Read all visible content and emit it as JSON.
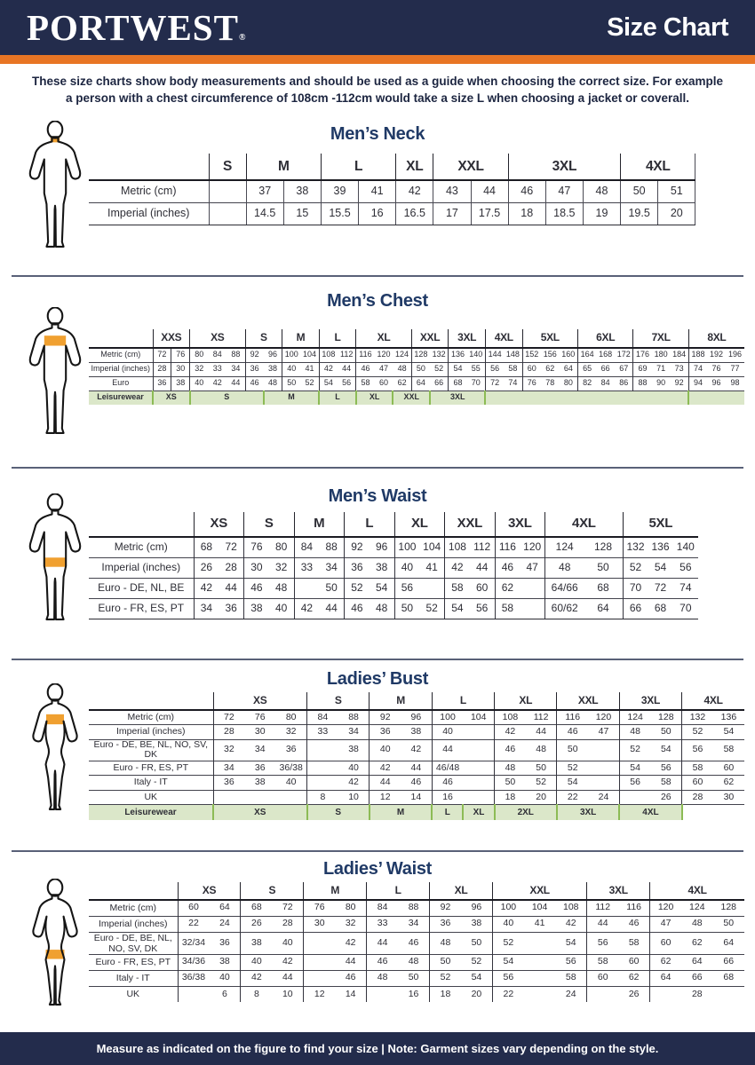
{
  "header": {
    "logo": "PORTWEST",
    "registered": "®",
    "title": "Size Chart"
  },
  "intro": {
    "line1": "These size charts show body measurements and should be used as a guide when choosing the correct size. For example",
    "line2": "a person with a chest circumference of 108cm -112cm would take a size L when choosing a jacket or coverall."
  },
  "colors": {
    "navy": "#232c4c",
    "orange": "#e87524",
    "size_red": "#a51d22",
    "title_navy": "#203a66",
    "leisure_green": "#65a033",
    "leisure_green_bg": "#dbe7c9",
    "figure_highlight": "#f0a030"
  },
  "sections": [
    {
      "id": "mens-neck",
      "title": "Men’s Neck",
      "figure": {
        "type": "male",
        "band": "neck"
      },
      "groups": [
        {
          "label": "S",
          "span": 1
        },
        {
          "label": "M",
          "span": 2
        },
        {
          "label": "L",
          "span": 2
        },
        {
          "label": "XL",
          "span": 1
        },
        {
          "label": "XXL",
          "span": 2
        },
        {
          "label": "3XL",
          "span": 3
        },
        {
          "label": "4XL",
          "span": 2
        }
      ],
      "rows": [
        {
          "label": "Metric (cm)",
          "cells": [
            "",
            "37",
            "38",
            "39",
            "41",
            "42",
            "43",
            "44",
            "46",
            "47",
            "48",
            "50",
            "51"
          ]
        },
        {
          "label": "Imperial (inches)",
          "cells": [
            "",
            "14.5",
            "15",
            "15.5",
            "16",
            "16.5",
            "17",
            "17.5",
            "18",
            "18.5",
            "19",
            "19.5",
            "20"
          ]
        }
      ]
    },
    {
      "id": "mens-chest",
      "title": "Men’s Chest",
      "figure": {
        "type": "male",
        "band": "chest"
      },
      "groups": [
        {
          "label": "XXS",
          "span": 2
        },
        {
          "label": "XS",
          "span": 3
        },
        {
          "label": "S",
          "span": 2
        },
        {
          "label": "M",
          "span": 2
        },
        {
          "label": "L",
          "span": 2
        },
        {
          "label": "XL",
          "span": 3
        },
        {
          "label": "XXL",
          "span": 2
        },
        {
          "label": "3XL",
          "span": 2
        },
        {
          "label": "4XL",
          "span": 2
        },
        {
          "label": "5XL",
          "span": 3
        },
        {
          "label": "6XL",
          "span": 3
        },
        {
          "label": "7XL",
          "span": 3
        },
        {
          "label": "8XL",
          "span": 3
        }
      ],
      "rows": [
        {
          "label": "Metric (cm)",
          "cells": [
            "72",
            "76",
            "80",
            "84",
            "88",
            "92",
            "96",
            "100",
            "104",
            "108",
            "112",
            "116",
            "120",
            "124",
            "128",
            "132",
            "136",
            "140",
            "144",
            "148",
            "152",
            "156",
            "160",
            "164",
            "168",
            "172",
            "176",
            "180",
            "184",
            "188",
            "192",
            "196"
          ]
        },
        {
          "label": "Imperial (inches)",
          "cells": [
            "28",
            "30",
            "32",
            "33",
            "34",
            "36",
            "38",
            "40",
            "41",
            "42",
            "44",
            "46",
            "47",
            "48",
            "50",
            "52",
            "54",
            "55",
            "56",
            "58",
            "60",
            "62",
            "64",
            "65",
            "66",
            "67",
            "69",
            "71",
            "73",
            "74",
            "76",
            "77"
          ]
        },
        {
          "label": "Euro",
          "cells": [
            "36",
            "38",
            "40",
            "42",
            "44",
            "46",
            "48",
            "50",
            "52",
            "54",
            "56",
            "58",
            "60",
            "62",
            "64",
            "66",
            "68",
            "70",
            "72",
            "74",
            "76",
            "78",
            "80",
            "82",
            "84",
            "86",
            "88",
            "90",
            "92",
            "94",
            "96",
            "98"
          ]
        }
      ],
      "leisure": {
        "label": "Leisurewear",
        "segments": [
          {
            "label": "XS",
            "span": 2
          },
          {
            "label": "S",
            "span": 4
          },
          {
            "label": "M",
            "span": 3
          },
          {
            "label": "L",
            "span": 2
          },
          {
            "label": "XL",
            "span": 2
          },
          {
            "label": "XXL",
            "span": 2
          },
          {
            "label": "3XL",
            "span": 3
          },
          {
            "label": "",
            "span": 11
          },
          {
            "label": "",
            "span": 3
          }
        ]
      }
    },
    {
      "id": "mens-waist",
      "title": "Men’s Waist",
      "figure": {
        "type": "male",
        "band": "waist"
      },
      "groups": [
        {
          "label": "XS",
          "span": 2
        },
        {
          "label": "S",
          "span": 2
        },
        {
          "label": "M",
          "span": 2
        },
        {
          "label": "L",
          "span": 2
        },
        {
          "label": "XL",
          "span": 2
        },
        {
          "label": "XXL",
          "span": 2
        },
        {
          "label": "3XL",
          "span": 2
        },
        {
          "label": "4XL",
          "span": 2
        },
        {
          "label": "5XL",
          "span": 3
        }
      ],
      "rows": [
        {
          "label": "Metric (cm)",
          "cells": [
            "68",
            "72",
            "76",
            "80",
            "84",
            "88",
            "92",
            "96",
            "100",
            "104",
            "108",
            "112",
            "116",
            "120",
            "124",
            "128",
            "132",
            "136",
            "140"
          ]
        },
        {
          "label": "Imperial (inches)",
          "cells": [
            "26",
            "28",
            "30",
            "32",
            "33",
            "34",
            "36",
            "38",
            "40",
            "41",
            "42",
            "44",
            "46",
            "47",
            "48",
            "50",
            "52",
            "54",
            "56"
          ]
        },
        {
          "label": "Euro - DE, NL, BE",
          "cells": [
            "42",
            "44",
            "46",
            "48",
            "",
            "50",
            "52",
            "54",
            "56",
            "",
            "58",
            "60",
            "62",
            "",
            "64/66",
            "68",
            "70",
            "72",
            "74"
          ]
        },
        {
          "label": "Euro - FR, ES, PT",
          "cells": [
            "34",
            "36",
            "38",
            "40",
            "42",
            "44",
            "46",
            "48",
            "50",
            "52",
            "54",
            "56",
            "58",
            "",
            "60/62",
            "64",
            "66",
            "68",
            "70"
          ]
        }
      ]
    },
    {
      "id": "ladies-bust",
      "title": "Ladies’ Bust",
      "figure": {
        "type": "female",
        "band": "bust"
      },
      "groups": [
        {
          "label": "XS",
          "span": 3
        },
        {
          "label": "S",
          "span": 2
        },
        {
          "label": "M",
          "span": 2
        },
        {
          "label": "L",
          "span": 2
        },
        {
          "label": "XL",
          "span": 2
        },
        {
          "label": "XXL",
          "span": 2
        },
        {
          "label": "3XL",
          "span": 2
        },
        {
          "label": "4XL",
          "span": 2
        }
      ],
      "rows": [
        {
          "label": "Metric (cm)",
          "cells": [
            "72",
            "76",
            "80",
            "84",
            "88",
            "92",
            "96",
            "100",
            "104",
            "108",
            "112",
            "116",
            "120",
            "124",
            "128",
            "132",
            "136"
          ]
        },
        {
          "label": "Imperial (inches)",
          "cells": [
            "28",
            "30",
            "32",
            "33",
            "34",
            "36",
            "38",
            "40",
            "",
            "42",
            "44",
            "46",
            "47",
            "48",
            "50",
            "52",
            "54"
          ]
        },
        {
          "label": "Euro -  DE, BE, NL, NO, SV, DK",
          "cells": [
            "32",
            "34",
            "36",
            "",
            "38",
            "40",
            "42",
            "44",
            "",
            "46",
            "48",
            "50",
            "",
            "52",
            "54",
            "56",
            "58"
          ]
        },
        {
          "label": "Euro - FR, ES, PT",
          "cells": [
            "34",
            "36",
            "36/38",
            "",
            "40",
            "42",
            "44",
            "46/48",
            "",
            "48",
            "50",
            "52",
            "",
            "54",
            "56",
            "58",
            "60"
          ]
        },
        {
          "label": "Italy - IT",
          "cells": [
            "36",
            "38",
            "40",
            "",
            "42",
            "44",
            "46",
            "46",
            "",
            "50",
            "52",
            "54",
            "",
            "56",
            "58",
            "60",
            "62"
          ]
        },
        {
          "label": "UK",
          "cells": [
            "",
            "",
            "",
            "8",
            "10",
            "12",
            "14",
            "16",
            "",
            "18",
            "20",
            "22",
            "24",
            "",
            "26",
            "28",
            "30"
          ]
        }
      ],
      "leisure": {
        "label": "Leisurewear",
        "segments": [
          {
            "label": "XS",
            "span": 3
          },
          {
            "label": "S",
            "span": 2
          },
          {
            "label": "M",
            "span": 2
          },
          {
            "label": "L",
            "span": 1
          },
          {
            "label": "XL",
            "span": 1
          },
          {
            "label": "2XL",
            "span": 2
          },
          {
            "label": "3XL",
            "span": 2
          },
          {
            "label": "4XL",
            "span": 2
          },
          {
            "label": "",
            "span": 2,
            "green": false
          }
        ]
      }
    },
    {
      "id": "ladies-waist",
      "title": "Ladies’ Waist",
      "figure": {
        "type": "female",
        "band": "waist"
      },
      "groups": [
        {
          "label": "XS",
          "span": 2
        },
        {
          "label": "S",
          "span": 2
        },
        {
          "label": "M",
          "span": 2
        },
        {
          "label": "L",
          "span": 2
        },
        {
          "label": "XL",
          "span": 2
        },
        {
          "label": "XXL",
          "span": 3
        },
        {
          "label": "3XL",
          "span": 2
        },
        {
          "label": "4XL",
          "span": 3
        }
      ],
      "rows": [
        {
          "label": "Metric (cm)",
          "cells": [
            "60",
            "64",
            "68",
            "72",
            "76",
            "80",
            "84",
            "88",
            "92",
            "96",
            "100",
            "104",
            "108",
            "112",
            "116",
            "120",
            "124",
            "128"
          ]
        },
        {
          "label": "Imperial (inches)",
          "cells": [
            "22",
            "24",
            "26",
            "28",
            "30",
            "32",
            "33",
            "34",
            "36",
            "38",
            "40",
            "41",
            "42",
            "44",
            "46",
            "47",
            "48",
            "50"
          ]
        },
        {
          "label": "Euro - DE, BE, NL,\nNO, SV, DK",
          "cells": [
            "32/34",
            "36",
            "38",
            "40",
            "",
            "42",
            "44",
            "46",
            "48",
            "50",
            "52",
            "",
            "54",
            "56",
            "58",
            "60",
            "62",
            "64"
          ]
        },
        {
          "label": "Euro - FR, ES, PT",
          "cells": [
            "34/36",
            "38",
            "40",
            "42",
            "",
            "44",
            "46",
            "48",
            "50",
            "52",
            "54",
            "",
            "56",
            "58",
            "60",
            "62",
            "64",
            "66"
          ]
        },
        {
          "label": "Italy - IT",
          "cells": [
            "36/38",
            "40",
            "42",
            "44",
            "",
            "46",
            "48",
            "50",
            "52",
            "54",
            "56",
            "",
            "58",
            "60",
            "62",
            "64",
            "66",
            "68"
          ]
        },
        {
          "label": "UK",
          "cells": [
            "",
            "6",
            "8",
            "10",
            "12",
            "14",
            "",
            "16",
            "18",
            "20",
            "22",
            "",
            "24",
            "",
            "26",
            "",
            "28",
            ""
          ]
        }
      ]
    }
  ],
  "footer": {
    "text": "Measure as indicated on the figure to find your size  |  Note: Garment sizes vary depending on the style."
  }
}
